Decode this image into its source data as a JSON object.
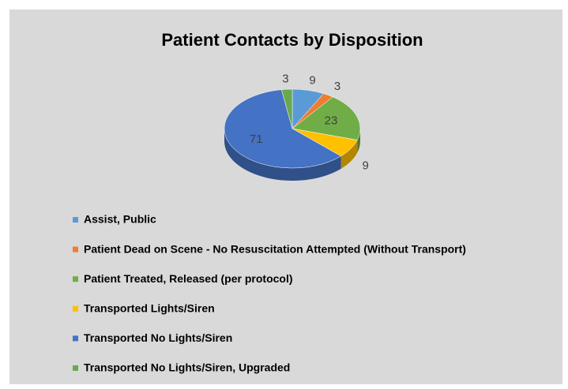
{
  "chart_data": {
    "type": "pie",
    "title": "Patient Contacts by Disposition",
    "categories": [
      "Assist, Public",
      "Patient Dead on Scene - No Resuscitation Attempted (Without Transport)",
      "Patient Treated, Released (per protocol)",
      "Transported Lights/Siren",
      "Transported No Lights/Siren",
      "Transported No Lights/Siren, Upgraded"
    ],
    "values": [
      9,
      3,
      23,
      9,
      71,
      3
    ],
    "colors": [
      "#5b9bd5",
      "#ed7d31",
      "#70ad47",
      "#ffc000",
      "#4472c4",
      "#6aa84f"
    ],
    "legend": "bottom-left"
  }
}
